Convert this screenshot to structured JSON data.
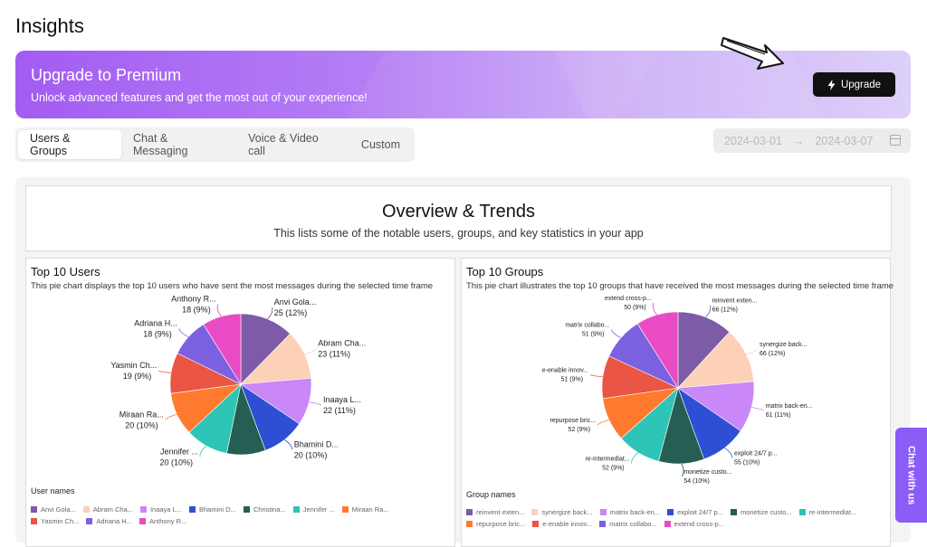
{
  "page": {
    "title": "Insights"
  },
  "banner": {
    "title": "Upgrade to Premium",
    "subtitle": "Unlock advanced features and get the most out of your experience!",
    "button_label": "Upgrade"
  },
  "tabs": [
    {
      "label": "Users & Groups",
      "active": true
    },
    {
      "label": "Chat & Messaging",
      "active": false
    },
    {
      "label": "Voice & Video call",
      "active": false
    },
    {
      "label": "Custom",
      "active": false
    }
  ],
  "date_range": {
    "start": "2024-03-01",
    "separator": "→",
    "end": "2024-03-07"
  },
  "overview": {
    "title": "Overview & Trends",
    "subtitle": "This lists some of the notable users, groups, and key statistics in your app"
  },
  "chat_widget": {
    "label": "Chat with us"
  },
  "colors": [
    "#7d5ba6",
    "#fdd0b8",
    "#c987f7",
    "#2e4fd4",
    "#255e52",
    "#2ec4b6",
    "#ff7a2f",
    "#ea5544",
    "#7b61e0",
    "#e94bc4"
  ],
  "chart_data": [
    {
      "type": "pie",
      "title": "Top 10 Users",
      "subtitle": "This pie chart displays the top 10 users who have sent the most messages during the selected time frame",
      "legend_title": "User names",
      "legend": [
        "Anvi Gola...",
        "Abram Cha...",
        "Inaaya L...",
        "Bhamini D...",
        "Christina...",
        "Jennifer ...",
        "Miraan Ra...",
        "Yasmin Ch...",
        "Adriana H...",
        "Anthony R..."
      ],
      "categories": [
        "Anvi Gola...",
        "Abram Cha...",
        "Inaaya L...",
        "Bhamini D...",
        "Christina",
        "Jennifer ...",
        "Miraan Ra...",
        "Yasmin Ch...",
        "Adriana H...",
        "Anthony R..."
      ],
      "values": [
        25,
        23,
        22,
        20,
        18,
        20,
        20,
        19,
        18,
        18
      ],
      "value_labels": [
        "25 (12%)",
        "23 (11%)",
        "22 (11%)",
        "20 (10%)",
        "",
        "20 (10%)",
        "20 (10%)",
        "19 (9%)",
        "18 (9%)",
        "18 (9%)"
      ],
      "slice_labels": [
        "Anvi Gola...",
        "Abram Cha...",
        "Inaaya  L...",
        "Bhamini D...",
        "",
        "Jennifer ...",
        "Miraan Ra...",
        "Yasmin Ch...",
        "Adriana H...",
        "Anthony R..."
      ]
    },
    {
      "type": "pie",
      "title": "Top 10 Groups",
      "subtitle": "This pie chart illustrates the top 10 groups that have received the most messages during the selected time frame",
      "legend_title": "Group names",
      "legend": [
        "reinvent exten...",
        "synergize back...",
        "matrix back-en...",
        "exploit 24/7 p...",
        "monetize custo...",
        "re-intermediat...",
        "repurpose bric...",
        "e-enable innov...",
        "matrix collabo...",
        "extend cross-p..."
      ],
      "categories": [
        "reinvent exten...",
        "synergize back...",
        "matrix back-en...",
        "exploit 24/7 p...",
        "monetize custo...",
        "re-intermediat...",
        "repurpose bric...",
        "e-enable innov...",
        "matrix collabo...",
        "extend cross-p..."
      ],
      "values": [
        66,
        66,
        61,
        55,
        54,
        52,
        52,
        51,
        51,
        50
      ],
      "value_labels": [
        "66 (12%)",
        "66 (12%)",
        "61 (11%)",
        "55 (10%)",
        "54 (10%)",
        "52 (9%)",
        "52 (9%)",
        "51 (9%)",
        "51 (9%)",
        "50 (9%)"
      ],
      "slice_labels": [
        "reinvent exten...",
        "synergize back...",
        "matrix back-en...",
        "exploit 24/7 p...",
        "monetize custo...",
        "re-intermediat...",
        "repurpose bric...",
        "e-enable innov...",
        "matrix collabo...",
        "extend cross-p..."
      ]
    }
  ]
}
